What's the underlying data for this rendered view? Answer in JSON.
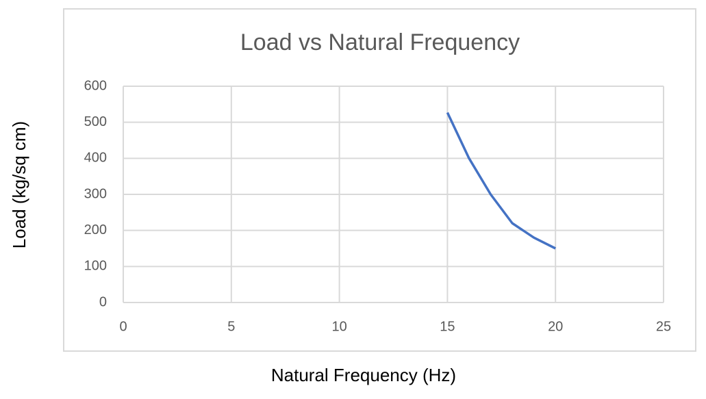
{
  "chart_data": {
    "type": "line",
    "title": "Load vs Natural Frequency",
    "x_label": "Natural Frequency (Hz)",
    "y_label": "Load (kg/sq cm)",
    "x": [
      15,
      16,
      17,
      18,
      19,
      20
    ],
    "series": [
      {
        "color": "#4472c4",
        "values": [
          527,
          400,
          300,
          220,
          180,
          150
        ]
      }
    ],
    "xlim": [
      0,
      25
    ],
    "xticks": [
      0,
      5,
      10,
      15,
      20,
      25
    ],
    "ylim": [
      0,
      600
    ],
    "yticks": [
      0,
      100,
      200,
      300,
      400,
      500,
      600
    ],
    "grid": true
  }
}
